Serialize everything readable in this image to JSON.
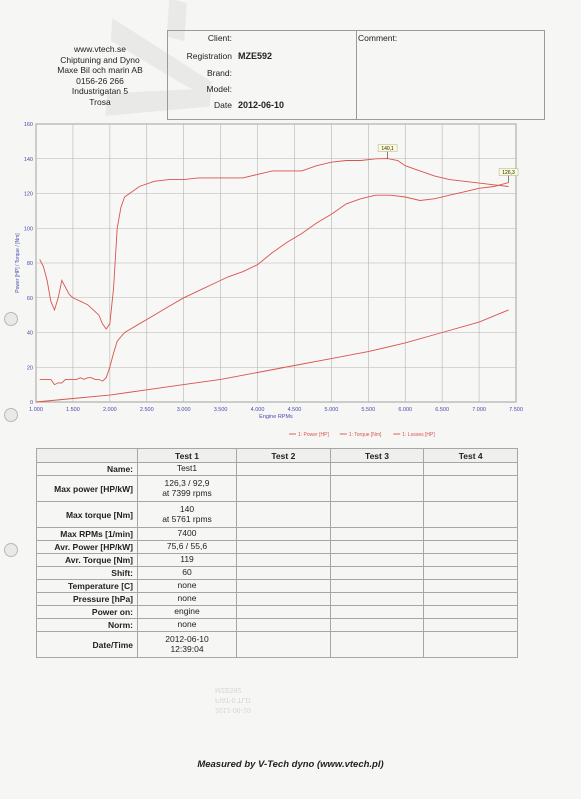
{
  "company": {
    "lines": [
      "www.vtech.se",
      "Chiptuning and Dyno",
      "Maxe Bil och marin AB",
      "0156-26 266",
      "Industrigatan 5",
      "Trosa"
    ]
  },
  "info": {
    "client_label": "Client:",
    "registration_label": "Registration",
    "registration_value": "MZE592",
    "brand_label": "Brand:",
    "model_label": "Model:",
    "date_label": "Date",
    "date_value": "2012-06-10",
    "comment_label": "Comment:"
  },
  "chart_data": {
    "type": "line",
    "xlabel": "Engine RPMs",
    "ylabel": "Power [HP] / Torque / [Nm]",
    "xlim": [
      1000,
      7500
    ],
    "ylim": [
      0,
      160
    ],
    "xticks": [
      "1.000",
      "1.500",
      "2.000",
      "2.500",
      "3.000",
      "3.500",
      "4.000",
      "4.500",
      "5.000",
      "5.500",
      "6.000",
      "6.500",
      "7.000",
      "7.500"
    ],
    "yticks": [
      "0",
      "20",
      "40",
      "60",
      "80",
      "100",
      "120",
      "140",
      "160"
    ],
    "grid": true,
    "legend_position": "bottom-right",
    "annotations": [
      {
        "text": "140,1",
        "x": 5761,
        "y": 140.1
      },
      {
        "text": "126,3",
        "x": 7399,
        "y": 126.3
      }
    ],
    "series": [
      {
        "name": "1: Power [HP]",
        "color": "#d9534f",
        "x": [
          1050,
          1100,
          1150,
          1200,
          1250,
          1300,
          1350,
          1400,
          1450,
          1500,
          1550,
          1600,
          1650,
          1700,
          1750,
          1800,
          1850,
          1900,
          1950,
          2000,
          2050,
          2100,
          2200,
          2400,
          2600,
          2800,
          3000,
          3200,
          3400,
          3600,
          3800,
          4000,
          4200,
          4400,
          4600,
          4800,
          5000,
          5200,
          5400,
          5600,
          5800,
          6000,
          6200,
          6400,
          6600,
          6800,
          7000,
          7200,
          7400
        ],
        "y": [
          13,
          13,
          13,
          13,
          10,
          11,
          11,
          13,
          13,
          13,
          13,
          14,
          13,
          14,
          14,
          13,
          13,
          12,
          14,
          20,
          28,
          35,
          40,
          45,
          50,
          55,
          60,
          64,
          68,
          72,
          75,
          79,
          86,
          92,
          97,
          103,
          108,
          114,
          117,
          119,
          119,
          118,
          116,
          117,
          119,
          121,
          123,
          124,
          126.3
        ]
      },
      {
        "name": "1: Torque [Nm]",
        "color": "#d9534f",
        "x": [
          1050,
          1100,
          1150,
          1200,
          1250,
          1300,
          1350,
          1400,
          1450,
          1500,
          1550,
          1600,
          1650,
          1700,
          1750,
          1800,
          1850,
          1900,
          1950,
          2000,
          2050,
          2100,
          2150,
          2200,
          2400,
          2600,
          2800,
          3000,
          3200,
          3400,
          3600,
          3800,
          4000,
          4200,
          4400,
          4600,
          4800,
          5000,
          5200,
          5400,
          5600,
          5761,
          5900,
          6000,
          6200,
          6400,
          6600,
          6800,
          7000,
          7200,
          7400
        ],
        "y": [
          82,
          78,
          70,
          58,
          53,
          60,
          70,
          66,
          62,
          60,
          59,
          58,
          57,
          56,
          54,
          52,
          50,
          45,
          42,
          45,
          65,
          100,
          112,
          118,
          124,
          127,
          128,
          128,
          129,
          129,
          129,
          129,
          131,
          133,
          133,
          133,
          136,
          138,
          139,
          139,
          140,
          140.1,
          139,
          136,
          133,
          130,
          128,
          127,
          126,
          125,
          124
        ]
      },
      {
        "name": "1: Losses [HP]",
        "color": "#d9534f",
        "x": [
          1000,
          1500,
          2000,
          2500,
          3000,
          3500,
          4000,
          4500,
          5000,
          5500,
          6000,
          6500,
          7000,
          7400
        ],
        "y": [
          0,
          2,
          4,
          7,
          10,
          13,
          17,
          21,
          25,
          29,
          34,
          40,
          46,
          53
        ]
      }
    ]
  },
  "results": {
    "headers": [
      "Test 1",
      "Test 2",
      "Test 3",
      "Test 4"
    ],
    "rows": [
      {
        "label": "Name:",
        "test1": [
          "Test1"
        ]
      },
      {
        "label": "Max power [HP/kW]",
        "test1": [
          "126,3 / 92,9",
          "at 7399 rpms"
        ]
      },
      {
        "label": "Max torque [Nm]",
        "test1": [
          "140",
          "at 5761 rpms"
        ]
      },
      {
        "label": "Max RPMs [1/min]",
        "test1": [
          "7400"
        ]
      },
      {
        "label": "Avr. Power [HP/kW]",
        "test1": [
          "75,6 / 55,6"
        ]
      },
      {
        "label": "Avr. Torque [Nm]",
        "test1": [
          "119"
        ]
      },
      {
        "label": "Shift:",
        "test1": [
          "60"
        ]
      },
      {
        "label": "Temperature [C]",
        "test1": [
          "none"
        ]
      },
      {
        "label": "Pressure [hPa]",
        "test1": [
          "none"
        ]
      },
      {
        "label": "Power on:",
        "test1": [
          "engine"
        ]
      },
      {
        "label": "Norm:",
        "test1": [
          "none"
        ]
      },
      {
        "label": "Date/Time",
        "test1": [
          "2012-06-10",
          "12:39:04"
        ]
      }
    ]
  },
  "footer": "Measured by V-Tech dyno (www.vtech.pl)",
  "watermark": "V-tech"
}
